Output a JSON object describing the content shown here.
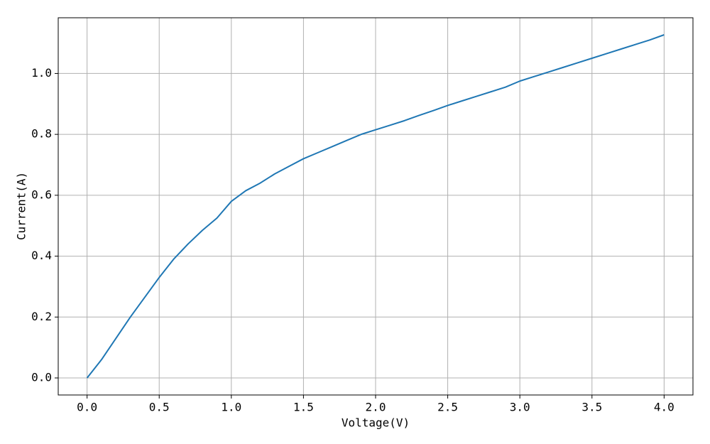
{
  "chart_data": {
    "type": "line",
    "xlabel": "Voltage(V)",
    "ylabel": "Current(A)",
    "x": [
      0,
      0.1,
      0.2,
      0.3,
      0.4,
      0.5,
      0.6,
      0.7,
      0.8,
      0.9,
      1.0,
      1.1,
      1.2,
      1.3,
      1.4,
      1.5,
      1.6,
      1.7,
      1.8,
      1.9,
      2.0,
      2.1,
      2.2,
      2.3,
      2.4,
      2.5,
      2.6,
      2.7,
      2.8,
      2.9,
      3.0,
      3.1,
      3.2,
      3.3,
      3.4,
      3.5,
      3.6,
      3.7,
      3.8,
      3.9,
      4.0
    ],
    "values": [
      0,
      0.06,
      0.13,
      0.2,
      0.265,
      0.33,
      0.39,
      0.44,
      0.485,
      0.525,
      0.58,
      0.615,
      0.64,
      0.67,
      0.695,
      0.72,
      0.74,
      0.76,
      0.78,
      0.8,
      0.815,
      0.83,
      0.845,
      0.862,
      0.878,
      0.895,
      0.91,
      0.925,
      0.94,
      0.955,
      0.975,
      0.99,
      1.005,
      1.02,
      1.035,
      1.05,
      1.065,
      1.08,
      1.095,
      1.11,
      1.127
    ],
    "color": "#1f77b4",
    "xlim": [
      -0.2,
      4.2
    ],
    "xticks": [
      {
        "value": 0,
        "label": "0.0"
      },
      0.5,
      {
        "value": 1,
        "label": "1.0"
      },
      1.5,
      {
        "value": 2,
        "label": "2.0"
      },
      2.5,
      {
        "value": 3,
        "label": "3.0"
      },
      3.5,
      {
        "value": 4,
        "label": "4.0"
      }
    ],
    "ylim": [
      -0.056,
      1.183
    ],
    "yticks": [
      {
        "value": 0,
        "label": "0.0"
      },
      0.2,
      0.4,
      0.6,
      0.8,
      {
        "value": 1,
        "label": "1.0"
      }
    ],
    "grid": true
  }
}
